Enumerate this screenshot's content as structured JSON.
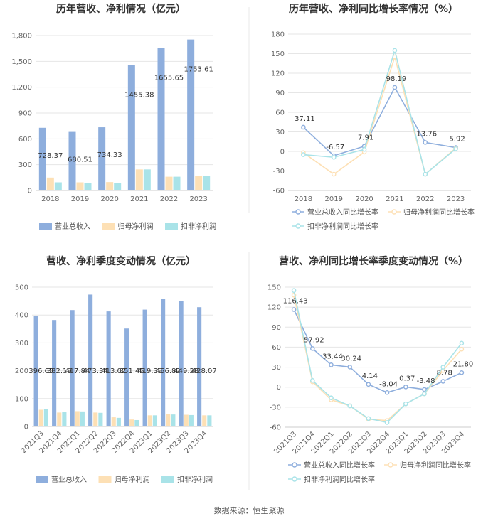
{
  "source": "数据来源：恒生聚源",
  "colors": {
    "revenue": "#8eaedd",
    "net_profit": "#fde0b5",
    "deducted_profit": "#a9e3e8",
    "line_revenue": "#8eaedd",
    "line_net": "#fde0b5",
    "line_deducted": "#a9e3e8"
  },
  "chart_data": [
    {
      "id": "annual-bar",
      "type": "bar",
      "title": "历年营收、净利情况（亿元）",
      "categories": [
        "2018",
        "2019",
        "2020",
        "2021",
        "2022",
        "2023"
      ],
      "ylim": [
        0,
        1800
      ],
      "yticks": [
        0,
        300,
        600,
        900,
        1200,
        1500,
        1800
      ],
      "ytick_labels": [
        "0",
        "300",
        "600",
        "900",
        "1,200",
        "1,500",
        "1,800"
      ],
      "series": [
        {
          "name": "营业总收入",
          "values": [
            728.37,
            680.51,
            734.33,
            1455.38,
            1655.65,
            1753.61
          ],
          "labels": [
            "728.37",
            "680.51",
            "734.33",
            "1455.38",
            "1655.65",
            "1753.61"
          ]
        },
        {
          "name": "归母净利润",
          "values": [
            150,
            95,
            98,
            245,
            160,
            170
          ]
        },
        {
          "name": "扣非净利润",
          "values": [
            95,
            85,
            90,
            245,
            160,
            168
          ]
        }
      ]
    },
    {
      "id": "annual-line",
      "type": "line",
      "title": "历年营收、净利同比增长率情况（%）",
      "categories": [
        "2018",
        "2019",
        "2020",
        "2021",
        "2022",
        "2023"
      ],
      "ylim": [
        -60,
        180
      ],
      "yticks": [
        -60,
        -30,
        0,
        30,
        60,
        90,
        120,
        150,
        180
      ],
      "ytick_labels": [
        "-60",
        "-30",
        "0",
        "30",
        "60",
        "90",
        "120",
        "150",
        "180"
      ],
      "series": [
        {
          "name": "营业总收入同比增长率",
          "values": [
            37.11,
            -6.57,
            7.91,
            98.19,
            13.76,
            5.92
          ],
          "labels": [
            "37.11",
            "-6.57",
            "7.91",
            "98.19",
            "13.76",
            "5.92"
          ]
        },
        {
          "name": "归母净利润同比增长率",
          "values": [
            -2,
            -35,
            -1,
            145,
            -35,
            5
          ]
        },
        {
          "name": "扣非净利润同比增长率",
          "values": [
            -5,
            -9,
            3,
            155,
            -35,
            4
          ]
        }
      ]
    },
    {
      "id": "quarter-bar",
      "type": "bar",
      "title": "营收、净利季度变动情况（亿元）",
      "categories": [
        "2021Q3",
        "2021Q4",
        "2022Q1",
        "2022Q2",
        "2022Q3",
        "2022Q4",
        "2023Q1",
        "2023Q2",
        "2023Q3",
        "2023Q4"
      ],
      "ylim": [
        0,
        500
      ],
      "yticks": [
        0,
        100,
        200,
        300,
        400,
        500
      ],
      "ytick_labels": [
        "0",
        "100",
        "200",
        "300",
        "400",
        "500"
      ],
      "series": [
        {
          "name": "营业总收入",
          "values": [
            396.65,
            382.19,
            417.84,
            473.34,
            413.02,
            351.45,
            419.39,
            456.82,
            449.28,
            428.07
          ],
          "labels": [
            "396.65",
            "382.19",
            "417.84",
            "473.34",
            "413.02",
            "351.45",
            "419.39",
            "456.82",
            "449.28",
            "428.07"
          ]
        },
        {
          "name": "归母净利润",
          "values": [
            60,
            50,
            55,
            50,
            33,
            25,
            40,
            45,
            42,
            40
          ]
        },
        {
          "name": "扣非净利润",
          "values": [
            62,
            51,
            54,
            49,
            31,
            23,
            40,
            43,
            41,
            40
          ]
        }
      ]
    },
    {
      "id": "quarter-line",
      "type": "line",
      "title": "营收、净利同比增长率季度变动情况（%）",
      "categories": [
        "2021Q3",
        "2021Q4",
        "2022Q1",
        "2022Q2",
        "2022Q3",
        "2022Q4",
        "2023Q1",
        "2023Q2",
        "2023Q3",
        "2023Q4"
      ],
      "ylim": [
        -60,
        150
      ],
      "yticks": [
        -60,
        -30,
        0,
        30,
        60,
        90,
        120,
        150
      ],
      "ytick_labels": [
        "-60",
        "-30",
        "0",
        "30",
        "60",
        "90",
        "120",
        "150"
      ],
      "series": [
        {
          "name": "营业总收入同比增长率",
          "values": [
            116.43,
            57.92,
            33.44,
            30.24,
            4.14,
            -8.04,
            0.37,
            -3.48,
            8.78,
            21.8
          ],
          "labels": [
            "116.43",
            "57.92",
            "33.44",
            "30.24",
            "4.14",
            "-8.04",
            "0.37",
            "-3.48",
            "8.78",
            "21.80"
          ]
        },
        {
          "name": "归母净利润同比增长率",
          "values": [
            138,
            8,
            -19,
            -28,
            -48,
            -50,
            -25,
            -10,
            25,
            57
          ]
        },
        {
          "name": "扣非净利润同比增长率",
          "values": [
            145,
            10,
            -16,
            -28,
            -47,
            -53,
            -25,
            -10,
            30,
            66
          ]
        }
      ]
    }
  ]
}
